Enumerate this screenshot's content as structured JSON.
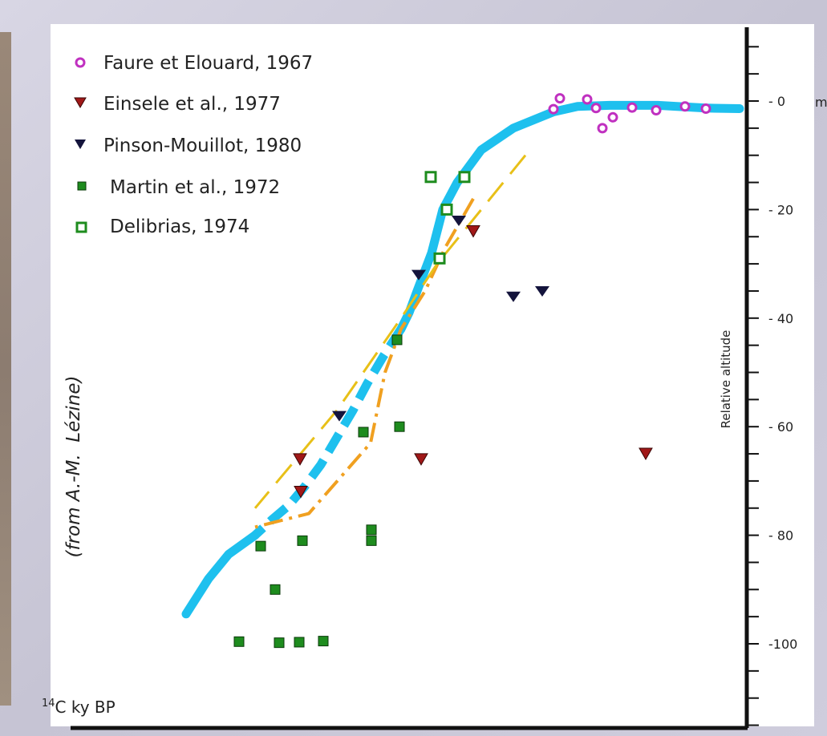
{
  "chart_data": {
    "type": "scatter",
    "attribution": "(from A.-M.  Lézine)",
    "xlabel": "14C ky BP",
    "xlabel_sup": "14",
    "xlabel_main": "C ky BP",
    "ylabel": "Relative altitude",
    "yunit": "m",
    "ylim": [
      -118,
      13
    ],
    "y_tick_labels": [
      {
        "value": 0,
        "label": "- 0"
      },
      {
        "value": -20,
        "label": "- 20"
      },
      {
        "value": -40,
        "label": "- 40"
      },
      {
        "value": -60,
        "label": "- 60"
      },
      {
        "value": -80,
        "label": "- 80"
      },
      {
        "value": -100,
        "label": "-100"
      }
    ],
    "y_minor_ticks": [
      10,
      5,
      0,
      -5,
      -10,
      -15,
      -20,
      -25,
      -30,
      -35,
      -40,
      -45,
      -50,
      -55,
      -60,
      -65,
      -70,
      -75,
      -80,
      -85,
      -90,
      -95,
      -100,
      -105,
      -110,
      -115
    ],
    "grid": false,
    "legend_position": "top-left",
    "colors": {
      "background": "#ffffff",
      "frame": "#c9c8d6",
      "sea_level_curve": "#1ec0ee",
      "orange_curve": "#f0a020",
      "yellow_curve": "#e8c018",
      "faure": "#c030c0",
      "einsele": "#a01818",
      "pinson": "#14143c",
      "martin": "#1e8c1e",
      "delibrias": "#1e8c1e"
    },
    "series": [
      {
        "name": "Faure et Elouard, 1967",
        "marker": "open-circle",
        "color_key": "faure",
        "points": [
          {
            "x": 690,
            "y": -1.5
          },
          {
            "x": 698,
            "y": 0.5
          },
          {
            "x": 732,
            "y": 0.3
          },
          {
            "x": 743,
            "y": -1.3
          },
          {
            "x": 764,
            "y": -3.0
          },
          {
            "x": 751,
            "y": -5.0
          },
          {
            "x": 788,
            "y": -1.2
          },
          {
            "x": 818,
            "y": -1.7
          },
          {
            "x": 854,
            "y": -1.0
          },
          {
            "x": 880,
            "y": -1.4
          }
        ]
      },
      {
        "name": "Einsele et al., 1977",
        "marker": "triangle-down",
        "color_key": "einsele",
        "points": [
          {
            "x": 590,
            "y": -24
          },
          {
            "x": 374,
            "y": -66
          },
          {
            "x": 525,
            "y": -66
          },
          {
            "x": 375,
            "y": -72
          },
          {
            "x": 805,
            "y": -65
          }
        ]
      },
      {
        "name": "Pinson-Mouillot, 1980",
        "marker": "filled-triangle-down",
        "color_key": "pinson",
        "points": [
          {
            "x": 572,
            "y": -22
          },
          {
            "x": 522,
            "y": -32
          },
          {
            "x": 640,
            "y": -36
          },
          {
            "x": 676,
            "y": -35
          },
          {
            "x": 423,
            "y": -58
          }
        ]
      },
      {
        "name": "Martin et al., 1972",
        "marker": "filled-square",
        "color_key": "martin",
        "points": [
          {
            "x": 495,
            "y": -44
          },
          {
            "x": 453,
            "y": -61
          },
          {
            "x": 498,
            "y": -60
          },
          {
            "x": 463,
            "y": -79
          },
          {
            "x": 463,
            "y": -81
          },
          {
            "x": 377,
            "y": -81
          },
          {
            "x": 325,
            "y": -82
          },
          {
            "x": 343,
            "y": -90
          },
          {
            "x": 298,
            "y": -99.6
          },
          {
            "x": 348,
            "y": -99.8
          },
          {
            "x": 373,
            "y": -99.7
          },
          {
            "x": 403,
            "y": -99.5
          }
        ]
      },
      {
        "name": "Delibrias, 1974",
        "marker": "open-square",
        "color_key": "delibrias",
        "points": [
          {
            "x": 537,
            "y": -14
          },
          {
            "x": 579,
            "y": -14
          },
          {
            "x": 557,
            "y": -20
          },
          {
            "x": 548,
            "y": -29
          }
        ]
      }
    ],
    "curves": [
      {
        "id": "sea-level-solid",
        "color_key": "sea_level_curve",
        "style": "solid",
        "width": 11,
        "points": [
          [
            922,
            -1.4
          ],
          [
            880,
            -1.3
          ],
          [
            820,
            -0.8
          ],
          [
            760,
            -0.8
          ],
          [
            720,
            -1.0
          ],
          [
            690,
            -2.0
          ],
          [
            640,
            -5.0
          ],
          [
            600,
            -9.0
          ],
          [
            570,
            -15.0
          ],
          [
            552,
            -20.0
          ],
          [
            538,
            -28.0
          ],
          [
            520,
            -35.0
          ],
          [
            510,
            -39.0
          ],
          [
            500,
            -42.0
          ]
        ]
      },
      {
        "id": "sea-level-dashed",
        "color_key": "sea_level_curve",
        "style": "dashed",
        "width": 11,
        "points": [
          [
            500,
            -42.0
          ],
          [
            478,
            -47.0
          ],
          [
            458,
            -52.0
          ],
          [
            440,
            -57.0
          ],
          [
            420,
            -62.0
          ],
          [
            400,
            -67.0
          ],
          [
            380,
            -71.0
          ],
          [
            360,
            -74.5
          ],
          [
            340,
            -77.0
          ],
          [
            318,
            -80.0
          ]
        ]
      },
      {
        "id": "sea-level-tail",
        "color_key": "sea_level_curve",
        "style": "solid",
        "width": 11,
        "points": [
          [
            318,
            -80.0
          ],
          [
            285,
            -83.5
          ],
          [
            260,
            -88.0
          ],
          [
            232,
            -94.5
          ]
        ]
      },
      {
        "id": "orange-dashdot",
        "color_key": "orange_curve",
        "style": "dashdot",
        "width": 4,
        "points": [
          [
            590,
            -18.0
          ],
          [
            555,
            -27.0
          ],
          [
            530,
            -35.0
          ],
          [
            500,
            -42.0
          ],
          [
            480,
            -50.0
          ],
          [
            462,
            -63.0
          ],
          [
            385,
            -76.0
          ],
          [
            318,
            -78.5
          ]
        ]
      },
      {
        "id": "yellow-dashed",
        "color_key": "yellow_curve",
        "style": "longdash",
        "width": 3,
        "points": [
          [
            655,
            -10.0
          ],
          [
            545,
            -30.0
          ],
          [
            500,
            -40.0
          ],
          [
            420,
            -57.0
          ],
          [
            318,
            -75.0
          ]
        ]
      }
    ]
  }
}
